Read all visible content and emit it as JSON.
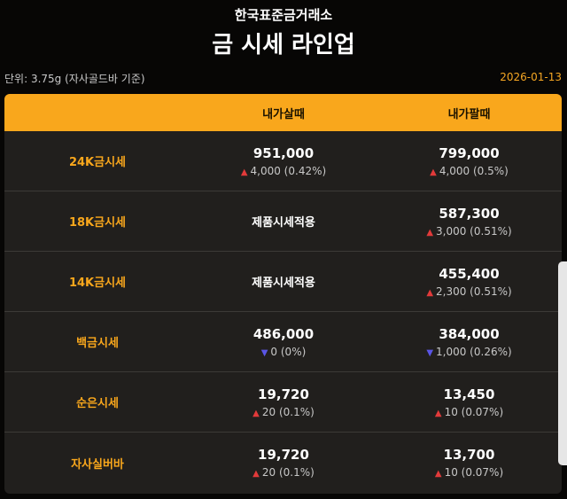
{
  "header": {
    "subtitle": "한국표준금거래소",
    "title": "금 시세 라인업",
    "unit": "단위: 3.75g (자사골드바 기준)",
    "date": "2026-01-13"
  },
  "colors": {
    "accent": "#f9a71c",
    "up": "#e23a3a",
    "down": "#5a55e6"
  },
  "table": {
    "columns": [
      "",
      "내가살때",
      "내가팔때"
    ],
    "rows": [
      {
        "label": "24K금시세",
        "buy": {
          "price": "951,000",
          "dir": "up",
          "change": "4,000 (0.42%)"
        },
        "sell": {
          "price": "799,000",
          "dir": "up",
          "change": "4,000 (0.5%)"
        }
      },
      {
        "label": "18K금시세",
        "buy": {
          "text": "제품시세적용"
        },
        "sell": {
          "price": "587,300",
          "dir": "up",
          "change": "3,000 (0.51%)"
        }
      },
      {
        "label": "14K금시세",
        "buy": {
          "text": "제품시세적용"
        },
        "sell": {
          "price": "455,400",
          "dir": "up",
          "change": "2,300 (0.51%)"
        }
      },
      {
        "label": "백금시세",
        "buy": {
          "price": "486,000",
          "dir": "down",
          "change": "0 (0%)"
        },
        "sell": {
          "price": "384,000",
          "dir": "down",
          "change": "1,000 (0.26%)"
        }
      },
      {
        "label": "순은시세",
        "buy": {
          "price": "19,720",
          "dir": "up",
          "change": "20 (0.1%)"
        },
        "sell": {
          "price": "13,450",
          "dir": "up",
          "change": "10 (0.07%)"
        }
      },
      {
        "label": "자사실버바",
        "buy": {
          "price": "19,720",
          "dir": "up",
          "change": "20 (0.1%)"
        },
        "sell": {
          "price": "13,700",
          "dir": "up",
          "change": "10 (0.07%)"
        }
      }
    ]
  }
}
